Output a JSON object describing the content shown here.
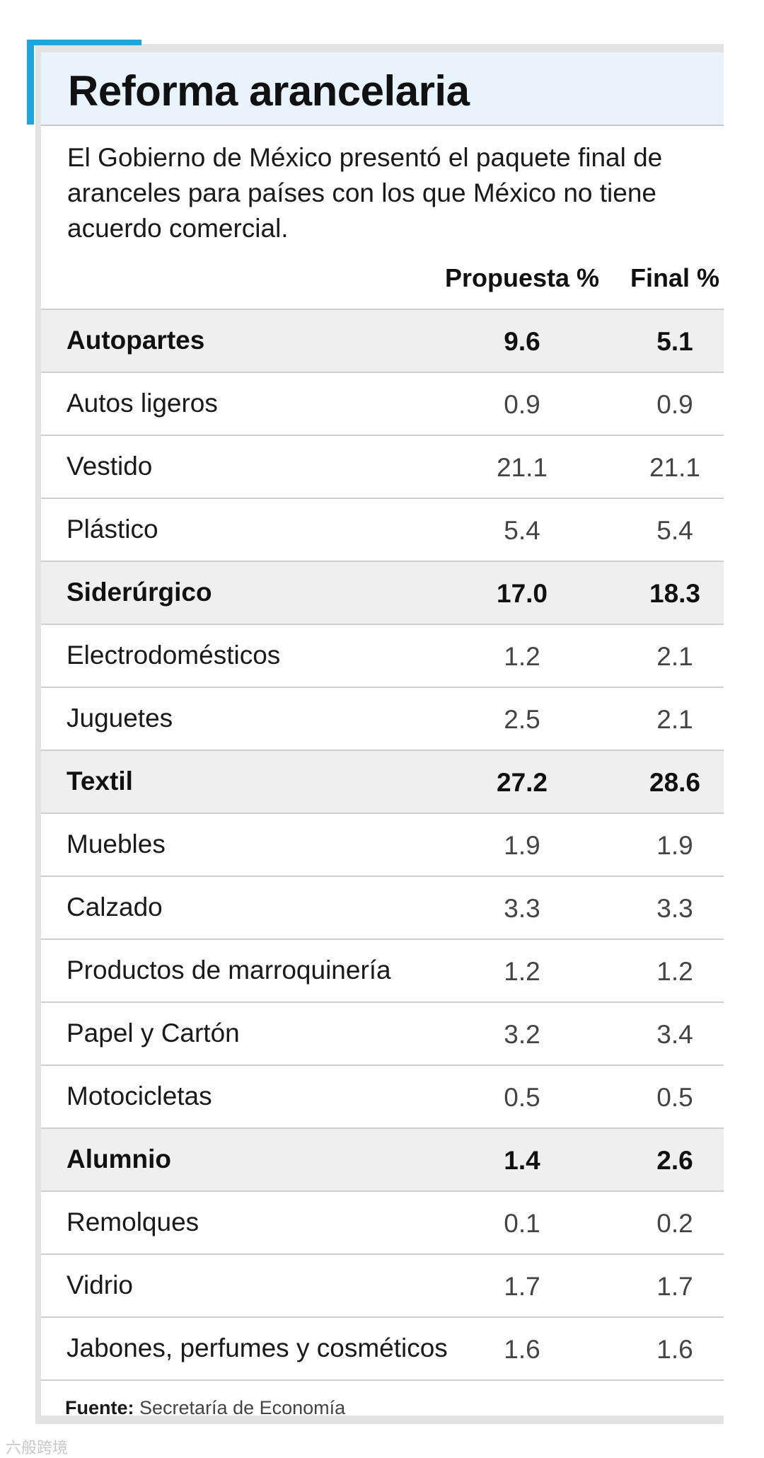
{
  "header": {
    "title": "Reforma arancelaria",
    "subtitle": "El Gobierno de México presentó el paquete final de aranceles para países con los que México no tiene acuerdo comercial."
  },
  "colors": {
    "accent": "#1aa7e0",
    "title_band": "#e8f3fb",
    "highlight_row": "#efefef"
  },
  "chart_data": {
    "type": "table",
    "columns": [
      "",
      "Propuesta %",
      "Final %"
    ],
    "rows": [
      {
        "label": "Autopartes",
        "propuesta": "9.6",
        "final": "5.1",
        "highlight": true
      },
      {
        "label": "Autos ligeros",
        "propuesta": "0.9",
        "final": "0.9",
        "highlight": false
      },
      {
        "label": "Vestido",
        "propuesta": "21.1",
        "final": "21.1",
        "highlight": false
      },
      {
        "label": "Plástico",
        "propuesta": "5.4",
        "final": "5.4",
        "highlight": false
      },
      {
        "label": "Siderúrgico",
        "propuesta": "17.0",
        "final": "18.3",
        "highlight": true
      },
      {
        "label": "Electrodomésticos",
        "propuesta": "1.2",
        "final": "2.1",
        "highlight": false
      },
      {
        "label": "Juguetes",
        "propuesta": "2.5",
        "final": "2.1",
        "highlight": false
      },
      {
        "label": "Textil",
        "propuesta": "27.2",
        "final": "28.6",
        "highlight": true
      },
      {
        "label": "Muebles",
        "propuesta": "1.9",
        "final": "1.9",
        "highlight": false
      },
      {
        "label": "Calzado",
        "propuesta": "3.3",
        "final": "3.3",
        "highlight": false
      },
      {
        "label": "Productos de marroquinería",
        "propuesta": "1.2",
        "final": "1.2",
        "highlight": false
      },
      {
        "label": "Papel y Cartón",
        "propuesta": "3.2",
        "final": "3.4",
        "highlight": false
      },
      {
        "label": "Motocicletas",
        "propuesta": "0.5",
        "final": "0.5",
        "highlight": false
      },
      {
        "label": "Alumnio",
        "propuesta": "1.4",
        "final": "2.6",
        "highlight": true
      },
      {
        "label": "Remolques",
        "propuesta": "0.1",
        "final": "0.2",
        "highlight": false
      },
      {
        "label": "Vidrio",
        "propuesta": "1.7",
        "final": "1.7",
        "highlight": false
      },
      {
        "label": "Jabones, perfumes y cosméticos",
        "propuesta": "1.6",
        "final": "1.6",
        "highlight": false
      }
    ]
  },
  "footer": {
    "source_label": "Fuente:",
    "source_text": "Secretaría de Economía",
    "watermark": "六般跨境"
  }
}
